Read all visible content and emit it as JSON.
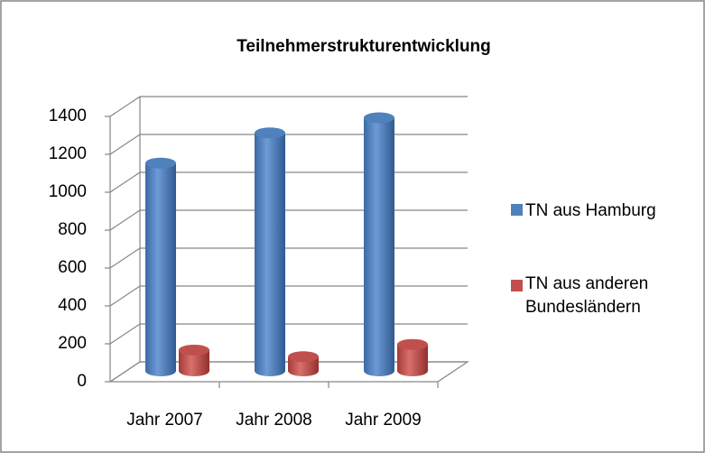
{
  "chart_data": {
    "type": "bar3d",
    "title": "Teilnehmerstrukturentwicklung",
    "categories": [
      "Jahr 2007",
      "Jahr 2008",
      "Jahr 2009"
    ],
    "series": [
      {
        "name": "TN aus Hamburg",
        "color": "#4f81bd",
        "values": [
          1100,
          1260,
          1340
        ]
      },
      {
        "name": "TN aus anderen Bundesländern",
        "color": "#c0504d",
        "values": [
          110,
          75,
          140
        ]
      }
    ],
    "ylim": [
      0,
      1400
    ],
    "yticks": [
      0,
      200,
      400,
      600,
      800,
      1000,
      1200,
      1400
    ],
    "grid": true,
    "legend": "right"
  }
}
